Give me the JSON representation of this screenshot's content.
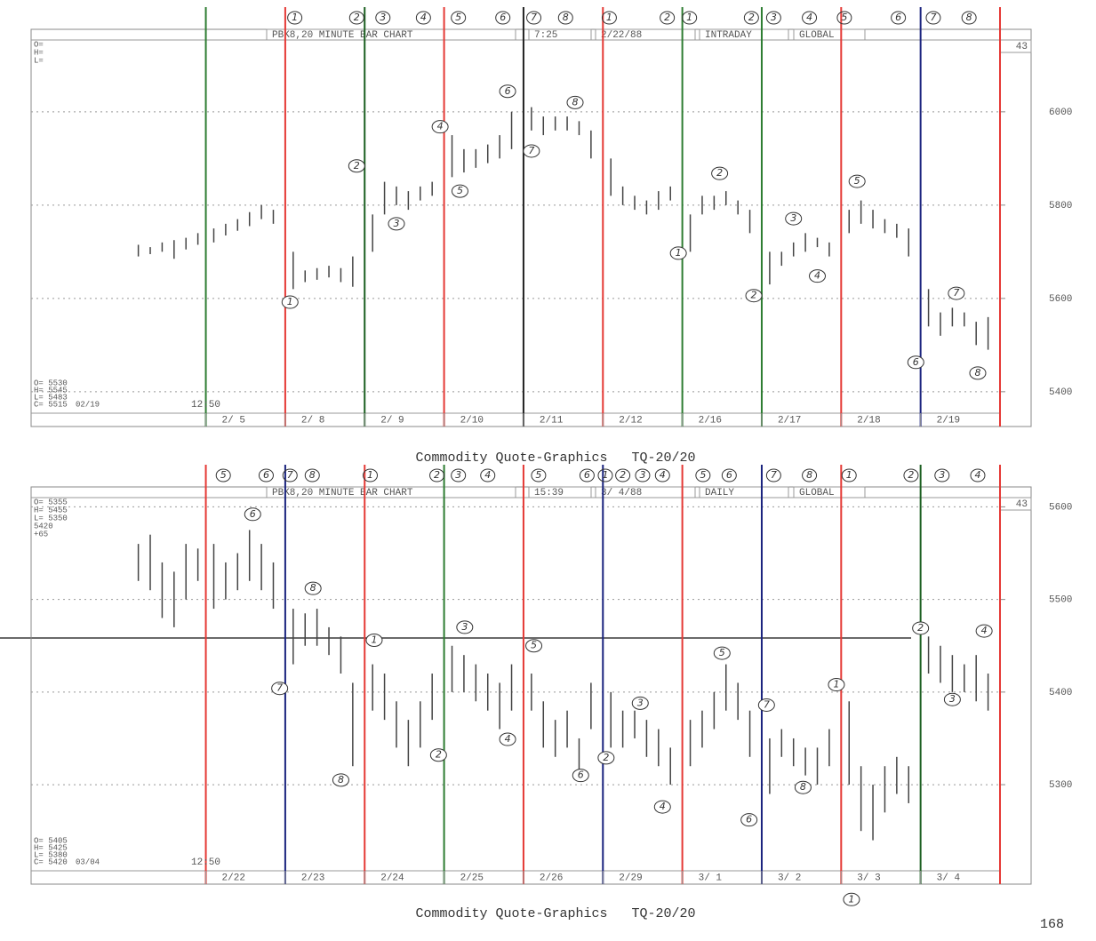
{
  "chart_data": [
    {
      "type": "hilo",
      "caption": "Commodity Quote-Graphics   TQ-20/20",
      "header": [
        "PBK8,20 MINUTE BAR CHART",
        "7:25",
        "2/22/88",
        "INTRADAY",
        "GLOBAL"
      ],
      "period": "43",
      "info": [
        "O=",
        "H=",
        "L="
      ],
      "stamp": [
        "O= 5530",
        "H= 5545",
        "L= 5483",
        "C= 5515"
      ],
      "stamp_date": "02/19",
      "stamp_time": "12:50",
      "categories": [
        "2/ 5",
        "2/ 8",
        "2/ 9",
        "2/10",
        "2/11",
        "2/12",
        "2/16",
        "2/17",
        "2/18",
        "2/19"
      ],
      "day_line_colors": [
        "#2e7d32",
        "#e53935",
        "#1b5e20",
        "#e53935",
        "#222222",
        "#e53935",
        "#2e7d32",
        "#2e7d32",
        "#e53935",
        "#1a237e",
        "#e53935"
      ],
      "xlim": [
        -2.2,
        10
      ],
      "ylim": [
        5354,
        6154
      ],
      "yticks": [
        5400,
        5600,
        5800,
        6000
      ],
      "grid": true,
      "color": "#444444",
      "x": [
        -0.85,
        -0.7,
        -0.55,
        -0.4,
        -0.25,
        -0.1,
        0.1,
        0.25,
        0.4,
        0.55,
        0.7,
        0.85,
        1.1,
        1.25,
        1.4,
        1.55,
        1.7,
        1.85,
        2.1,
        2.25,
        2.4,
        2.55,
        2.7,
        2.85,
        3.1,
        3.25,
        3.4,
        3.55,
        3.7,
        3.85,
        4.1,
        4.25,
        4.4,
        4.55,
        4.7,
        4.85,
        5.1,
        5.25,
        5.4,
        5.55,
        5.7,
        5.85,
        6.1,
        6.25,
        6.4,
        6.55,
        6.7,
        6.85,
        7.1,
        7.25,
        7.4,
        7.55,
        7.7,
        7.85,
        8.1,
        8.25,
        8.4,
        8.55,
        8.7,
        8.85,
        9.1,
        9.25,
        9.4,
        9.55,
        9.7,
        9.85
      ],
      "low": [
        5690,
        5695,
        5700,
        5685,
        5705,
        5715,
        5720,
        5735,
        5745,
        5755,
        5770,
        5760,
        5620,
        5635,
        5640,
        5645,
        5635,
        5625,
        5700,
        5780,
        5800,
        5790,
        5810,
        5820,
        5860,
        5870,
        5880,
        5890,
        5900,
        5920,
        5960,
        5950,
        5960,
        5960,
        5950,
        5900,
        5820,
        5800,
        5790,
        5780,
        5790,
        5810,
        5700,
        5780,
        5790,
        5800,
        5780,
        5740,
        5630,
        5670,
        5690,
        5700,
        5710,
        5690,
        5740,
        5760,
        5750,
        5740,
        5730,
        5690,
        5540,
        5520,
        5540,
        5540,
        5500,
        5490
      ],
      "high": [
        5715,
        5710,
        5720,
        5725,
        5730,
        5740,
        5750,
        5760,
        5770,
        5785,
        5800,
        5790,
        5700,
        5660,
        5665,
        5670,
        5665,
        5690,
        5780,
        5850,
        5840,
        5830,
        5840,
        5850,
        5950,
        5920,
        5920,
        5930,
        5950,
        6000,
        6010,
        5990,
        5990,
        5990,
        5980,
        5960,
        5900,
        5840,
        5820,
        5810,
        5830,
        5840,
        5780,
        5820,
        5820,
        5830,
        5810,
        5790,
        5700,
        5700,
        5720,
        5740,
        5730,
        5720,
        5790,
        5810,
        5790,
        5770,
        5760,
        5750,
        5620,
        5570,
        5580,
        5570,
        5550,
        5560
      ],
      "cycle_marks": [
        {
          "text": "1",
          "x": 1.12
        },
        {
          "text": "2",
          "x": 1.9
        },
        {
          "text": "3",
          "x": 2.23
        },
        {
          "text": "4",
          "x": 2.74
        },
        {
          "text": "5",
          "x": 3.18
        },
        {
          "text": "6",
          "x": 3.74
        },
        {
          "text": "7",
          "x": 4.13
        },
        {
          "text": "8",
          "x": 4.53
        },
        {
          "text": "1",
          "x": 5.08
        },
        {
          "text": "2",
          "x": 5.81
        },
        {
          "text": "1",
          "x": 6.09
        },
        {
          "text": "2",
          "x": 6.87
        },
        {
          "text": "3",
          "x": 7.15
        },
        {
          "text": "4",
          "x": 7.6
        },
        {
          "text": "5",
          "x": 8.04
        },
        {
          "text": "6",
          "x": 8.72
        },
        {
          "text": "7",
          "x": 9.16
        },
        {
          "text": "8",
          "x": 9.61
        }
      ],
      "annotations": [
        {
          "text": "1",
          "x": 1.06,
          "y": 5592
        },
        {
          "text": "2",
          "x": 1.9,
          "y": 5884
        },
        {
          "text": "3",
          "x": 2.4,
          "y": 5760
        },
        {
          "text": "4",
          "x": 2.95,
          "y": 5968
        },
        {
          "text": "5",
          "x": 3.2,
          "y": 5830
        },
        {
          "text": "6",
          "x": 3.8,
          "y": 6044
        },
        {
          "text": "7",
          "x": 4.1,
          "y": 5916
        },
        {
          "text": "8",
          "x": 4.65,
          "y": 6020
        },
        {
          "text": "1",
          "x": 5.95,
          "y": 5697
        },
        {
          "text": "2",
          "x": 6.47,
          "y": 5868
        },
        {
          "text": "3",
          "x": 7.4,
          "y": 5771
        },
        {
          "text": "4",
          "x": 7.7,
          "y": 5648
        },
        {
          "text": "5",
          "x": 8.2,
          "y": 5851
        },
        {
          "text": "2",
          "x": 6.9,
          "y": 5606
        },
        {
          "text": "7",
          "x": 9.45,
          "y": 5611
        },
        {
          "text": "6",
          "x": 8.94,
          "y": 5463
        },
        {
          "text": "8",
          "x": 9.72,
          "y": 5440
        }
      ]
    },
    {
      "type": "hilo",
      "caption": "Commodity Quote-Graphics   TQ-20/20",
      "header": [
        "PBK8,20 MINUTE BAR CHART",
        "15:39",
        "3/ 4/88",
        "DAILY",
        "GLOBAL"
      ],
      "period": "43",
      "info": [
        "O= 5355",
        "H= 5455",
        "L= 5350",
        "5420",
        "+65"
      ],
      "stamp": [
        "O= 5405",
        "H= 5425",
        "L= 5380",
        "C= 5420"
      ],
      "stamp_date": "03/04",
      "stamp_time": "12:50",
      "categories": [
        "2/22",
        "2/23",
        "2/24",
        "2/25",
        "2/26",
        "2/29",
        "3/ 1",
        "3/ 2",
        "3/ 3",
        "3/ 4"
      ],
      "day_line_colors": [
        "#e53935",
        "#1a237e",
        "#e53935",
        "#2e7d32",
        "#e53935",
        "#1a237e",
        "#e53935",
        "#1a237e",
        "#e53935",
        "#1b5e20",
        "#e53935"
      ],
      "xlim": [
        -2.2,
        10
      ],
      "ylim": [
        5207,
        5610
      ],
      "yticks": [
        5300,
        5400,
        5500,
        5600
      ],
      "grid": true,
      "color": "#444444",
      "x": [
        -0.85,
        -0.7,
        -0.55,
        -0.4,
        -0.25,
        -0.1,
        0.1,
        0.25,
        0.4,
        0.55,
        0.7,
        0.85,
        1.1,
        1.25,
        1.4,
        1.55,
        1.7,
        1.85,
        2.1,
        2.25,
        2.4,
        2.55,
        2.7,
        2.85,
        3.1,
        3.25,
        3.4,
        3.55,
        3.7,
        3.85,
        4.1,
        4.25,
        4.4,
        4.55,
        4.7,
        4.85,
        5.1,
        5.25,
        5.4,
        5.55,
        5.7,
        5.85,
        6.1,
        6.25,
        6.4,
        6.55,
        6.7,
        6.85,
        7.1,
        7.25,
        7.4,
        7.55,
        7.7,
        7.85,
        8.1,
        8.25,
        8.4,
        8.55,
        8.7,
        8.85,
        9.1,
        9.25,
        9.4,
        9.55,
        9.7,
        9.85
      ],
      "low": [
        5520,
        5510,
        5480,
        5470,
        5500,
        5520,
        5490,
        5500,
        5510,
        5520,
        5510,
        5490,
        5430,
        5450,
        5450,
        5440,
        5420,
        5320,
        5380,
        5370,
        5340,
        5320,
        5340,
        5370,
        5400,
        5400,
        5390,
        5380,
        5360,
        5380,
        5380,
        5340,
        5330,
        5340,
        5310,
        5360,
        5340,
        5340,
        5350,
        5330,
        5320,
        5300,
        5320,
        5340,
        5360,
        5380,
        5370,
        5330,
        5290,
        5330,
        5320,
        5310,
        5300,
        5320,
        5300,
        5250,
        5240,
        5270,
        5290,
        5280,
        5420,
        5410,
        5400,
        5400,
        5390,
        5380
      ],
      "high": [
        5560,
        5570,
        5540,
        5530,
        5560,
        5555,
        5560,
        5540,
        5550,
        5575,
        5560,
        5540,
        5490,
        5485,
        5490,
        5470,
        5460,
        5410,
        5430,
        5420,
        5390,
        5370,
        5390,
        5420,
        5450,
        5440,
        5430,
        5420,
        5410,
        5430,
        5420,
        5390,
        5370,
        5380,
        5350,
        5410,
        5400,
        5380,
        5380,
        5370,
        5360,
        5340,
        5370,
        5380,
        5400,
        5430,
        5410,
        5380,
        5350,
        5360,
        5350,
        5340,
        5340,
        5360,
        5390,
        5320,
        5300,
        5320,
        5330,
        5320,
        5460,
        5450,
        5440,
        5430,
        5440,
        5420
      ],
      "cycle_marks": [
        {
          "text": "5",
          "x": 0.22
        },
        {
          "text": "6",
          "x": 0.76
        },
        {
          "text": "7",
          "x": 1.06
        },
        {
          "text": "8",
          "x": 1.34
        },
        {
          "text": "1",
          "x": 2.07
        },
        {
          "text": "2",
          "x": 2.91
        },
        {
          "text": "3",
          "x": 3.18
        },
        {
          "text": "4",
          "x": 3.55
        },
        {
          "text": "5",
          "x": 4.19
        },
        {
          "text": "6",
          "x": 4.8
        },
        {
          "text": "1",
          "x": 5.03
        },
        {
          "text": "2",
          "x": 5.25
        },
        {
          "text": "3",
          "x": 5.5
        },
        {
          "text": "4",
          "x": 5.75
        },
        {
          "text": "5",
          "x": 6.26
        },
        {
          "text": "6",
          "x": 6.59
        },
        {
          "text": "7",
          "x": 7.15
        },
        {
          "text": "8",
          "x": 7.6
        },
        {
          "text": "1",
          "x": 8.1
        },
        {
          "text": "2",
          "x": 8.88
        },
        {
          "text": "3",
          "x": 9.27
        },
        {
          "text": "4",
          "x": 9.72
        }
      ],
      "annotations": [
        {
          "text": "6",
          "x": 0.59,
          "y": 5592
        },
        {
          "text": "8",
          "x": 1.35,
          "y": 5512
        },
        {
          "text": "7",
          "x": 0.93,
          "y": 5404
        },
        {
          "text": "1",
          "x": 2.12,
          "y": 5456
        },
        {
          "text": "3",
          "x": 3.26,
          "y": 5470
        },
        {
          "text": "2",
          "x": 2.93,
          "y": 5332
        },
        {
          "text": "5",
          "x": 4.13,
          "y": 5450
        },
        {
          "text": "4",
          "x": 3.8,
          "y": 5349
        },
        {
          "text": "6",
          "x": 4.72,
          "y": 5310
        },
        {
          "text": "2",
          "x": 5.04,
          "y": 5329
        },
        {
          "text": "3",
          "x": 5.47,
          "y": 5388
        },
        {
          "text": "4",
          "x": 5.75,
          "y": 5276
        },
        {
          "text": "5",
          "x": 6.5,
          "y": 5442
        },
        {
          "text": "7",
          "x": 7.06,
          "y": 5386
        },
        {
          "text": "1",
          "x": 7.94,
          "y": 5408
        },
        {
          "text": "8",
          "x": 7.52,
          "y": 5297
        },
        {
          "text": "6",
          "x": 6.84,
          "y": 5262
        },
        {
          "text": "2",
          "x": 9.0,
          "y": 5469
        },
        {
          "text": "4",
          "x": 9.8,
          "y": 5466
        },
        {
          "text": "3",
          "x": 9.4,
          "y": 5392
        },
        {
          "text": "8",
          "x": 1.7,
          "y": 5305
        },
        {
          "text": "1",
          "x": 8.13,
          "y": 5176
        }
      ]
    }
  ],
  "page_number": "168"
}
